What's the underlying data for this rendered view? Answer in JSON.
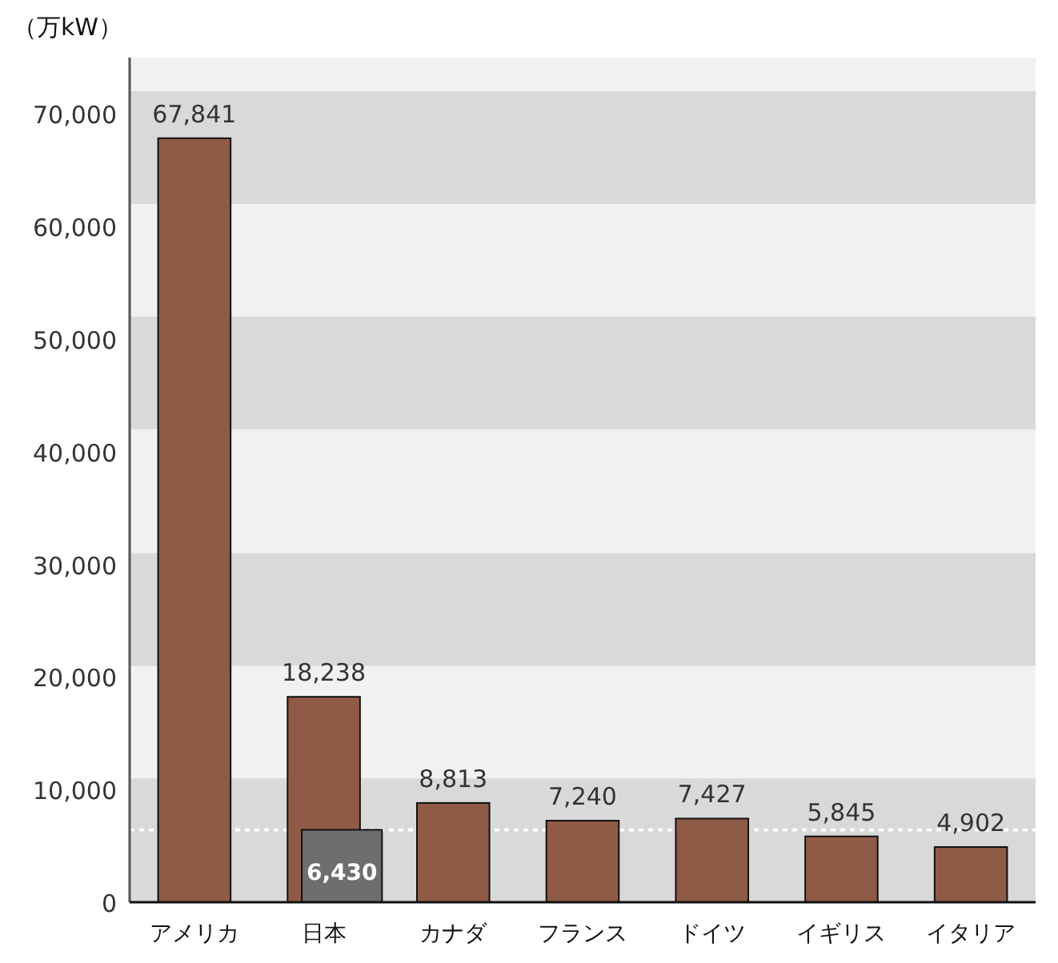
{
  "chart_data": {
    "type": "bar",
    "ylabel": "（万kW）",
    "categories": [
      "アメリカ",
      "日本",
      "カナダ",
      "フランス",
      "ドイツ",
      "イギリス",
      "イタリア"
    ],
    "series": [
      {
        "color": "#8f5b47",
        "values": [
          67841,
          18238,
          8813,
          7240,
          7427,
          5845,
          4902
        ],
        "value_labels": [
          "67,841",
          "18,238",
          "8,813",
          "7,240",
          "7,427",
          "5,845",
          "4,902"
        ]
      },
      {
        "color": "#6e6e70",
        "values": [
          null,
          6430,
          null,
          null,
          null,
          null,
          null
        ],
        "value_labels": [
          null,
          "6,430",
          null,
          null,
          null,
          null,
          null
        ]
      }
    ],
    "ylim": [
      0,
      75000
    ],
    "yticks": [
      0,
      {
        "value": 10000,
        "label": "10,000"
      },
      {
        "value": 20000,
        "label": "20,000"
      },
      {
        "value": 30000,
        "label": "30,000"
      },
      {
        "value": 40000,
        "label": "40,000"
      },
      {
        "value": 50000,
        "label": "50,000"
      },
      {
        "value": 60000,
        "label": "60,000"
      },
      {
        "value": 70000,
        "label": "70,000"
      }
    ],
    "bands": [
      {
        "axis": "y",
        "from": 0,
        "to": 11000,
        "color": "#d9d9d9"
      },
      {
        "axis": "y",
        "from": 21000,
        "to": 31000,
        "color": "#d9d9d9"
      },
      {
        "axis": "y",
        "from": 42000,
        "to": 52000,
        "color": "#d9d9d9"
      },
      {
        "axis": "y",
        "from": 62000,
        "to": 72000,
        "color": "#d9d9d9"
      }
    ],
    "ref_lines": [
      {
        "axis": "y",
        "value": 6430,
        "color": "#ffffff",
        "line_style": "dotted"
      }
    ],
    "grid": false
  }
}
